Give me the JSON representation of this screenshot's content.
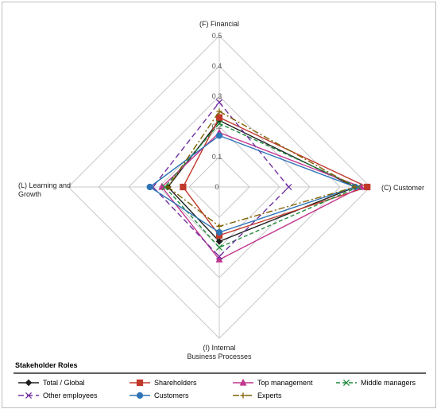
{
  "chart_data": {
    "type": "radar",
    "axes": [
      {
        "key": "F",
        "label_lines": [
          "(F) Financial"
        ]
      },
      {
        "key": "C",
        "label_lines": [
          "(C) Customer"
        ]
      },
      {
        "key": "I",
        "label_lines": [
          "(I) Internal",
          "Business Processes"
        ]
      },
      {
        "key": "L",
        "label_lines": [
          "(L) Learning and",
          "Growth"
        ]
      }
    ],
    "ticks": [
      "0",
      "0.1",
      "0.2",
      "0.3",
      "0.4",
      "0.5"
    ],
    "rmax": 0.5,
    "legend_title": "Stakeholder Roles",
    "series": [
      {
        "name": "Total / Global",
        "color": "#1f1f1f",
        "dash": "",
        "marker": "diamond",
        "values": [
          0.22,
          0.45,
          0.18,
          0.17
        ]
      },
      {
        "name": "Shareholders",
        "color": "#c0392b",
        "dash": "",
        "marker": "square",
        "values": [
          0.23,
          0.49,
          0.16,
          0.12
        ]
      },
      {
        "name": "Top management",
        "color": "#c2368f",
        "dash": "",
        "marker": "triangle",
        "values": [
          0.18,
          0.47,
          0.24,
          0.19
        ]
      },
      {
        "name": "Middle managers",
        "color": "#1e8a3c",
        "dash": "5,3",
        "marker": "x",
        "values": [
          0.21,
          0.46,
          0.2,
          0.18
        ]
      },
      {
        "name": "Other employees",
        "color": "#7030a0",
        "dash": "7,4",
        "marker": "x",
        "values": [
          0.28,
          0.23,
          0.23,
          0.22
        ]
      },
      {
        "name": "Customers",
        "color": "#2e75b6",
        "dash": "",
        "marker": "circle",
        "values": [
          0.17,
          0.45,
          0.15,
          0.23
        ]
      },
      {
        "name": "Experts",
        "color": "#7f6000",
        "dash": "8,3,2,3",
        "marker": "plus",
        "values": [
          0.25,
          0.45,
          0.13,
          0.17
        ]
      }
    ]
  }
}
